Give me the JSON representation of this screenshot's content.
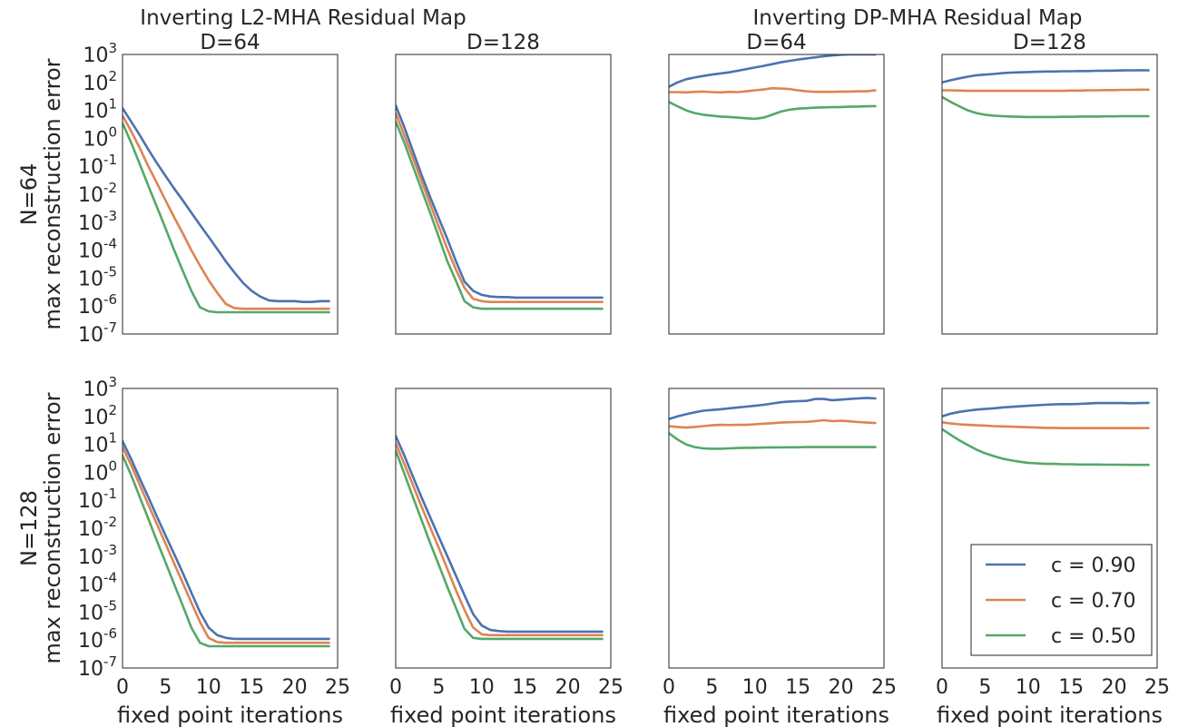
{
  "figure": {
    "group_titles": [
      "Inverting L2-MHA Residual Map",
      "Inverting DP-MHA Residual Map"
    ],
    "row_labels": [
      "N=64",
      "N=128"
    ],
    "y_axis_label": "max reconstruction error",
    "x_axis_label": "fixed point iterations",
    "y_tick_labels": [
      {
        "base": "10",
        "exp": "3"
      },
      {
        "base": "10",
        "exp": "2"
      },
      {
        "base": "10",
        "exp": "1"
      },
      {
        "base": "10",
        "exp": "0"
      },
      {
        "base": "10",
        "exp": "-1"
      },
      {
        "base": "10",
        "exp": "-2"
      },
      {
        "base": "10",
        "exp": "-3"
      },
      {
        "base": "10",
        "exp": "-4"
      },
      {
        "base": "10",
        "exp": "-5"
      },
      {
        "base": "10",
        "exp": "-6"
      },
      {
        "base": "10",
        "exp": "-7"
      }
    ],
    "x_tick_labels": [
      "0",
      "5",
      "10",
      "15",
      "20",
      "25"
    ],
    "legend_position": "lower-right"
  },
  "colors": {
    "c = 0.90": "#4c72b0",
    "c = 0.70": "#dd8452",
    "c = 0.50": "#55a868"
  },
  "chart_data": [
    {
      "type": "line",
      "title": "D=64",
      "group": "Inverting L2-MHA Residual Map",
      "row": "N=64",
      "x": [
        0,
        1,
        2,
        3,
        4,
        5,
        6,
        7,
        8,
        9,
        10,
        11,
        12,
        13,
        14,
        15,
        16,
        17,
        18,
        19,
        20,
        21,
        22,
        23,
        24
      ],
      "xlim": [
        0,
        25
      ],
      "ylim": [
        1e-07,
        1000
      ],
      "yscale": "log",
      "xlabel": "",
      "ylabel": "max reconstruction error",
      "series": [
        {
          "name": "c = 0.90",
          "values": [
            12,
            4,
            1.3,
            0.4,
            0.13,
            0.045,
            0.016,
            0.006,
            0.0022,
            0.0008,
            0.0003,
            0.00011,
            4e-05,
            1.6e-05,
            6.8e-06,
            3.5e-06,
            2.2e-06,
            1.6e-06,
            1.5e-06,
            1.5e-06,
            1.5e-06,
            1.4e-06,
            1.4e-06,
            1.5e-06,
            1.5e-06
          ]
        },
        {
          "name": "c = 0.70",
          "values": [
            6.5,
            1.8,
            0.45,
            0.1,
            0.025,
            0.006,
            0.0015,
            0.0004,
            0.0001,
            2.8e-05,
            8.5e-06,
            3e-06,
            1.2e-06,
            8.5e-07,
            8e-07,
            8e-07,
            8e-07,
            8e-07,
            8e-07,
            8e-07,
            8e-07,
            8e-07,
            8e-07,
            8e-07,
            8e-07
          ]
        },
        {
          "name": "c = 0.50",
          "values": [
            3.5,
            0.7,
            0.12,
            0.02,
            0.0035,
            0.0006,
            0.0001,
            1.8e-05,
            3.5e-06,
            9e-07,
            6.5e-07,
            6e-07,
            6e-07,
            6e-07,
            6e-07,
            6e-07,
            6e-07,
            6e-07,
            6e-07,
            6e-07,
            6e-07,
            6e-07,
            6e-07,
            6e-07,
            6e-07
          ]
        }
      ]
    },
    {
      "type": "line",
      "title": "D=128",
      "group": "Inverting L2-MHA Residual Map",
      "row": "N=64",
      "x": [
        0,
        1,
        2,
        3,
        4,
        5,
        6,
        7,
        8,
        9,
        10,
        11,
        12,
        13,
        14,
        15,
        16,
        17,
        18,
        19,
        20,
        21,
        22,
        23,
        24
      ],
      "xlim": [
        0,
        25
      ],
      "ylim": [
        1e-07,
        1000
      ],
      "yscale": "log",
      "xlabel": "",
      "ylabel": "",
      "series": [
        {
          "name": "c = 0.90",
          "values": [
            15,
            2.5,
            0.35,
            0.05,
            0.008,
            0.0014,
            0.00025,
            4e-05,
            7.5e-06,
            3.5e-06,
            2.5e-06,
            2.2e-06,
            2.1e-06,
            2.1e-06,
            2e-06,
            2e-06,
            2e-06,
            2e-06,
            2e-06,
            2e-06,
            2e-06,
            2e-06,
            2e-06,
            2e-06,
            2e-06
          ]
        },
        {
          "name": "c = 0.70",
          "values": [
            8,
            1.3,
            0.2,
            0.03,
            0.0045,
            0.0007,
            0.00011,
            2e-05,
            4.5e-06,
            1.8e-06,
            1.5e-06,
            1.4e-06,
            1.4e-06,
            1.4e-06,
            1.4e-06,
            1.4e-06,
            1.4e-06,
            1.4e-06,
            1.4e-06,
            1.4e-06,
            1.4e-06,
            1.4e-06,
            1.4e-06,
            1.4e-06,
            1.4e-06
          ]
        },
        {
          "name": "c = 0.50",
          "values": [
            4,
            0.7,
            0.1,
            0.015,
            0.0022,
            0.0003,
            4e-05,
            8e-06,
            1.5e-06,
            9e-07,
            8e-07,
            8e-07,
            8e-07,
            8e-07,
            8e-07,
            8e-07,
            8e-07,
            8e-07,
            8e-07,
            8e-07,
            8e-07,
            8e-07,
            8e-07,
            8e-07,
            8e-07
          ]
        }
      ]
    },
    {
      "type": "line",
      "title": "D=64",
      "group": "Inverting DP-MHA Residual Map",
      "row": "N=64",
      "x": [
        0,
        1,
        2,
        3,
        4,
        5,
        6,
        7,
        8,
        9,
        10,
        11,
        12,
        13,
        14,
        15,
        16,
        17,
        18,
        19,
        20,
        21,
        22,
        23,
        24
      ],
      "xlim": [
        0,
        25
      ],
      "ylim": [
        1e-07,
        1000
      ],
      "yscale": "log",
      "xlabel": "",
      "ylabel": "",
      "series": [
        {
          "name": "c = 0.90",
          "values": [
            70,
            100,
            130,
            150,
            170,
            190,
            210,
            230,
            260,
            300,
            340,
            390,
            450,
            520,
            590,
            660,
            720,
            790,
            860,
            920,
            980,
            1000,
            1000,
            1000,
            1000
          ]
        },
        {
          "name": "c = 0.70",
          "values": [
            45,
            45,
            44,
            46,
            47,
            45,
            44,
            46,
            45,
            48,
            52,
            56,
            62,
            60,
            58,
            52,
            48,
            46,
            46,
            46,
            47,
            47,
            48,
            48,
            52
          ]
        },
        {
          "name": "c = 0.50",
          "values": [
            20,
            14,
            10,
            8,
            7,
            6.5,
            6,
            5.8,
            5.5,
            5.2,
            5,
            5.5,
            7,
            9,
            10.5,
            11.5,
            12,
            12.5,
            12.8,
            13,
            13.2,
            13.5,
            13.7,
            14,
            14.2
          ]
        }
      ]
    },
    {
      "type": "line",
      "title": "D=128",
      "group": "Inverting DP-MHA Residual Map",
      "row": "N=64",
      "x": [
        0,
        1,
        2,
        3,
        4,
        5,
        6,
        7,
        8,
        9,
        10,
        11,
        12,
        13,
        14,
        15,
        16,
        17,
        18,
        19,
        20,
        21,
        22,
        23,
        24
      ],
      "xlim": [
        0,
        25
      ],
      "ylim": [
        1e-07,
        1000
      ],
      "yscale": "log",
      "xlabel": "",
      "ylabel": "",
      "series": [
        {
          "name": "c = 0.90",
          "values": [
            100,
            120,
            140,
            160,
            180,
            190,
            200,
            215,
            225,
            230,
            235,
            240,
            245,
            245,
            250,
            250,
            255,
            255,
            260,
            262,
            265,
            268,
            270,
            272,
            270
          ]
        },
        {
          "name": "c = 0.70",
          "values": [
            52,
            52,
            51,
            50,
            50,
            50,
            50,
            50,
            50,
            50,
            50,
            50,
            50,
            50,
            50,
            51,
            51,
            52,
            52,
            53,
            53,
            54,
            54,
            55,
            55
          ]
        },
        {
          "name": "c = 0.50",
          "values": [
            30,
            20,
            14,
            10,
            8,
            7,
            6.5,
            6.2,
            6,
            5.9,
            5.8,
            5.8,
            5.8,
            5.8,
            5.9,
            5.9,
            6,
            6,
            6,
            6.1,
            6.1,
            6.2,
            6.2,
            6.2,
            6.2
          ]
        }
      ]
    },
    {
      "type": "line",
      "title": "",
      "group": "Inverting L2-MHA Residual Map",
      "row": "N=128",
      "x": [
        0,
        1,
        2,
        3,
        4,
        5,
        6,
        7,
        8,
        9,
        10,
        11,
        12,
        13,
        14,
        15,
        16,
        17,
        18,
        19,
        20,
        21,
        22,
        23,
        24
      ],
      "xlim": [
        0,
        25
      ],
      "ylim": [
        1e-07,
        1000
      ],
      "yscale": "log",
      "xlabel": "fixed point iterations",
      "ylabel": "max reconstruction error",
      "series": [
        {
          "name": "c = 0.90",
          "values": [
            13,
            3,
            0.6,
            0.13,
            0.026,
            0.0055,
            0.0012,
            0.00025,
            5e-05,
            1e-05,
            2.8e-06,
            1.5e-06,
            1.2e-06,
            1.1e-06,
            1.1e-06,
            1.1e-06,
            1.1e-06,
            1.1e-06,
            1.1e-06,
            1.1e-06,
            1.1e-06,
            1.1e-06,
            1.1e-06,
            1.1e-06,
            1.1e-06
          ]
        },
        {
          "name": "c = 0.70",
          "values": [
            8,
            1.8,
            0.35,
            0.07,
            0.014,
            0.0028,
            0.00055,
            0.00011,
            2.2e-05,
            4.5e-06,
            1.2e-06,
            8.5e-07,
            8e-07,
            8e-07,
            8e-07,
            8e-07,
            8e-07,
            8e-07,
            8e-07,
            8e-07,
            8e-07,
            8e-07,
            8e-07,
            8e-07,
            8e-07
          ]
        },
        {
          "name": "c = 0.50",
          "values": [
            4,
            0.8,
            0.13,
            0.022,
            0.0035,
            0.0006,
            0.0001,
            1.7e-05,
            2.8e-06,
            8e-07,
            6e-07,
            6e-07,
            6e-07,
            6e-07,
            6e-07,
            6e-07,
            6e-07,
            6e-07,
            6e-07,
            6e-07,
            6e-07,
            6e-07,
            6e-07,
            6e-07,
            6e-07
          ]
        }
      ]
    },
    {
      "type": "line",
      "title": "",
      "group": "Inverting L2-MHA Residual Map",
      "row": "N=128",
      "x": [
        0,
        1,
        2,
        3,
        4,
        5,
        6,
        7,
        8,
        9,
        10,
        11,
        12,
        13,
        14,
        15,
        16,
        17,
        18,
        19,
        20,
        21,
        22,
        23,
        24
      ],
      "xlim": [
        0,
        25
      ],
      "ylim": [
        1e-07,
        1000
      ],
      "yscale": "log",
      "xlabel": "fixed point iterations",
      "ylabel": "",
      "series": [
        {
          "name": "c = 0.90",
          "values": [
            20,
            4,
            0.7,
            0.13,
            0.025,
            0.005,
            0.001,
            0.0002,
            4e-05,
            8.5e-06,
            3.3e-06,
            2.3e-06,
            2.1e-06,
            2e-06,
            2e-06,
            2e-06,
            2e-06,
            2e-06,
            2e-06,
            2e-06,
            2e-06,
            2e-06,
            2e-06,
            2e-06,
            2e-06
          ]
        },
        {
          "name": "c = 0.70",
          "values": [
            11,
            2,
            0.35,
            0.06,
            0.011,
            0.002,
            0.00035,
            6e-05,
            1.2e-05,
            2.8e-06,
            1.6e-06,
            1.5e-06,
            1.5e-06,
            1.5e-06,
            1.5e-06,
            1.5e-06,
            1.5e-06,
            1.5e-06,
            1.5e-06,
            1.5e-06,
            1.5e-06,
            1.5e-06,
            1.5e-06,
            1.5e-06,
            1.5e-06
          ]
        },
        {
          "name": "c = 0.50",
          "values": [
            6,
            0.9,
            0.13,
            0.02,
            0.003,
            0.0005,
            8e-05,
            1.4e-05,
            2.5e-06,
            1.2e-06,
            1.1e-06,
            1.1e-06,
            1.1e-06,
            1.1e-06,
            1.1e-06,
            1.1e-06,
            1.1e-06,
            1.1e-06,
            1.1e-06,
            1.1e-06,
            1.1e-06,
            1.1e-06,
            1.1e-06,
            1.1e-06,
            1.1e-06
          ]
        }
      ]
    },
    {
      "type": "line",
      "title": "",
      "group": "Inverting DP-MHA Residual Map",
      "row": "N=128",
      "x": [
        0,
        1,
        2,
        3,
        4,
        5,
        6,
        7,
        8,
        9,
        10,
        11,
        12,
        13,
        14,
        15,
        16,
        17,
        18,
        19,
        20,
        21,
        22,
        23,
        24
      ],
      "xlim": [
        0,
        25
      ],
      "ylim": [
        1e-07,
        1000
      ],
      "yscale": "log",
      "xlabel": "fixed point iterations",
      "ylabel": "",
      "series": [
        {
          "name": "c = 0.90",
          "values": [
            80,
            100,
            120,
            140,
            160,
            170,
            180,
            195,
            210,
            225,
            240,
            260,
            290,
            320,
            340,
            350,
            360,
            420,
            420,
            380,
            400,
            420,
            440,
            460,
            440
          ]
        },
        {
          "name": "c = 0.70",
          "values": [
            45,
            42,
            40,
            42,
            45,
            48,
            50,
            49,
            50,
            50,
            52,
            55,
            57,
            60,
            62,
            63,
            64,
            68,
            73,
            68,
            70,
            67,
            63,
            60,
            58
          ]
        },
        {
          "name": "c = 0.50",
          "values": [
            25,
            15,
            10,
            8,
            7.2,
            7,
            7,
            7.2,
            7.4,
            7.5,
            7.6,
            7.7,
            7.8,
            7.8,
            7.9,
            7.9,
            8,
            8,
            8,
            8,
            8,
            8,
            8,
            8,
            8
          ]
        }
      ]
    },
    {
      "type": "line",
      "title": "",
      "group": "Inverting DP-MHA Residual Map",
      "row": "N=128",
      "x": [
        0,
        1,
        2,
        3,
        4,
        5,
        6,
        7,
        8,
        9,
        10,
        11,
        12,
        13,
        14,
        15,
        16,
        17,
        18,
        19,
        20,
        21,
        22,
        23,
        24
      ],
      "xlim": [
        0,
        25
      ],
      "ylim": [
        1e-07,
        1000
      ],
      "yscale": "log",
      "xlabel": "fixed point iterations",
      "ylabel": "",
      "series": [
        {
          "name": "c = 0.90",
          "values": [
            100,
            125,
            145,
            160,
            175,
            185,
            195,
            210,
            220,
            230,
            240,
            250,
            260,
            270,
            275,
            275,
            280,
            290,
            300,
            300,
            300,
            300,
            295,
            300,
            305
          ]
        },
        {
          "name": "c = 0.70",
          "values": [
            62,
            56,
            52,
            50,
            48,
            47,
            45,
            44,
            43,
            42,
            41,
            40,
            39,
            39,
            38,
            38,
            38,
            38,
            38,
            38,
            38,
            38,
            38,
            38,
            38
          ]
        },
        {
          "name": "c = 0.50",
          "values": [
            35,
            22,
            14,
            9.5,
            6.5,
            4.8,
            3.8,
            3.1,
            2.7,
            2.4,
            2.2,
            2.1,
            2,
            2,
            1.95,
            1.95,
            1.9,
            1.9,
            1.9,
            1.88,
            1.87,
            1.86,
            1.85,
            1.85,
            1.85
          ]
        }
      ]
    }
  ]
}
